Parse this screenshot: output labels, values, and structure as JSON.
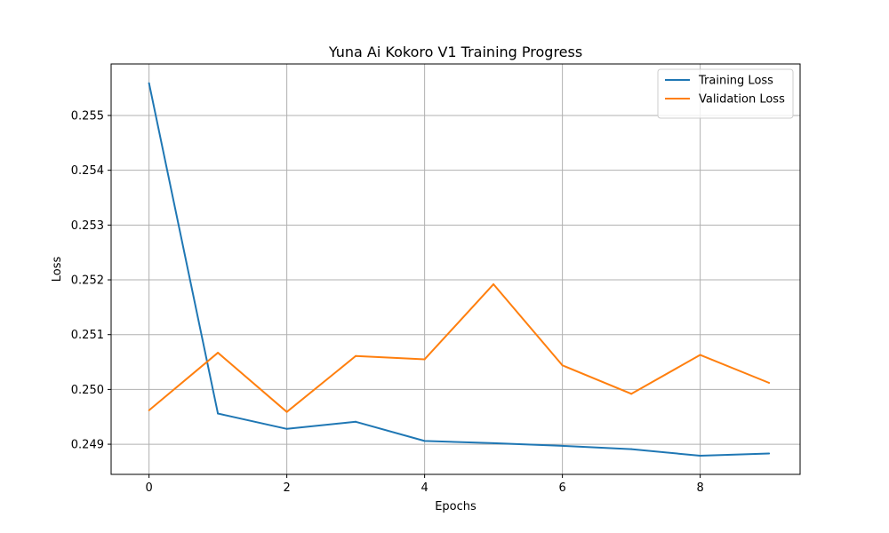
{
  "chart_data": {
    "type": "line",
    "title": "Yuna Ai Kokoro V1 Training Progress",
    "xlabel": "Epochs",
    "ylabel": "Loss",
    "x": [
      0,
      1,
      2,
      3,
      4,
      5,
      6,
      7,
      8,
      9
    ],
    "xlim": [
      -0.55,
      9.45
    ],
    "ylim": [
      0.24845,
      0.25594
    ],
    "xticks": [
      "0",
      "2",
      "4",
      "6",
      "8"
    ],
    "yticks": [
      "0.249",
      "0.250",
      "0.251",
      "0.252",
      "0.253",
      "0.254",
      "0.255"
    ],
    "grid": true,
    "legend_position": "top-right",
    "series": [
      {
        "name": "Training Loss",
        "color": "#1f77b4",
        "values": [
          0.25559,
          0.24956,
          0.24928,
          0.24941,
          0.24906,
          0.24902,
          0.24897,
          0.24891,
          0.24879,
          0.24883
        ]
      },
      {
        "name": "Validation Loss",
        "color": "#ff7f0e",
        "values": [
          0.24962,
          0.25067,
          0.24959,
          0.25061,
          0.25055,
          0.25192,
          0.25044,
          0.24992,
          0.25063,
          0.25012
        ]
      }
    ]
  }
}
